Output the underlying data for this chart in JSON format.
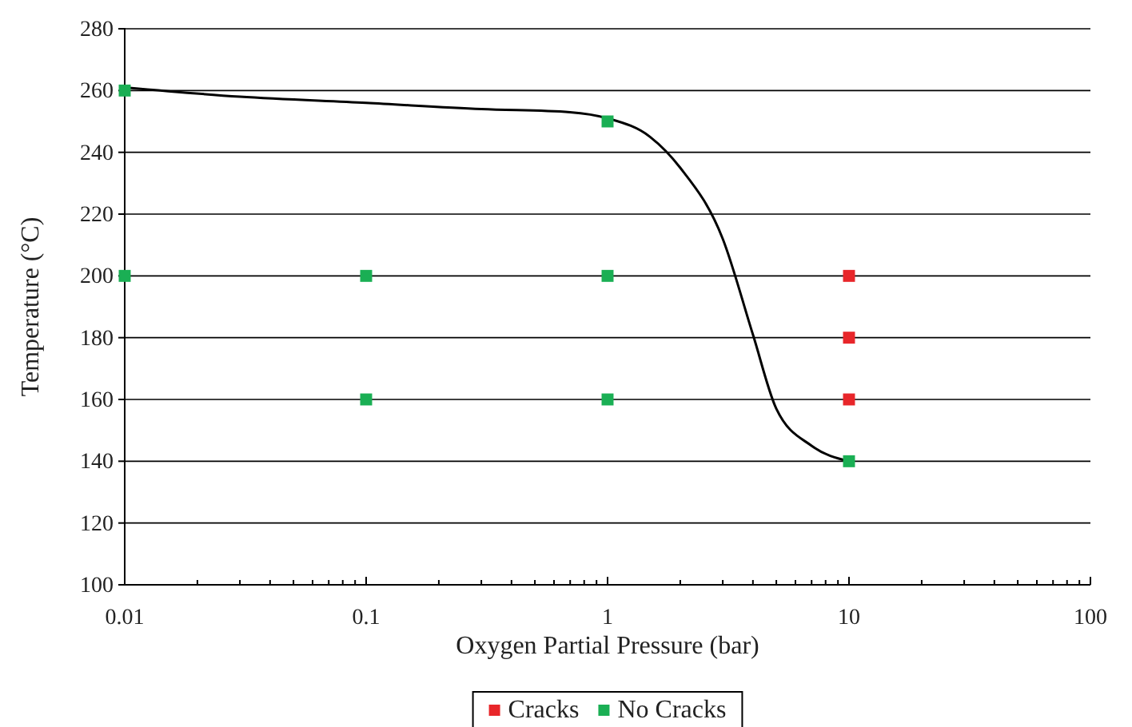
{
  "chart_data": {
    "type": "scatter",
    "xlabel": "Oxygen Partial Pressure (bar)",
    "ylabel": "Temperature (°C)",
    "log": "x",
    "xlim": [
      0.01,
      100
    ],
    "ylim": [
      100,
      280
    ],
    "xticks": [
      0.01,
      {
        "value": 0.02,
        "label": null
      },
      {
        "value": 0.03,
        "label": null
      },
      {
        "value": 0.04,
        "label": null
      },
      {
        "value": 0.05,
        "label": null
      },
      {
        "value": 0.06,
        "label": null
      },
      {
        "value": 0.07,
        "label": null
      },
      {
        "value": 0.08,
        "label": null
      },
      {
        "value": 0.09,
        "label": null
      },
      0.1,
      {
        "value": 0.2,
        "label": null
      },
      {
        "value": 0.3,
        "label": null
      },
      {
        "value": 0.4,
        "label": null
      },
      {
        "value": 0.5,
        "label": null
      },
      {
        "value": 0.6,
        "label": null
      },
      {
        "value": 0.7,
        "label": null
      },
      {
        "value": 0.8,
        "label": null
      },
      {
        "value": 0.9,
        "label": null
      },
      1,
      {
        "value": 2,
        "label": null
      },
      {
        "value": 3,
        "label": null
      },
      {
        "value": 4,
        "label": null
      },
      {
        "value": 5,
        "label": null
      },
      {
        "value": 6,
        "label": null
      },
      {
        "value": 7,
        "label": null
      },
      {
        "value": 8,
        "label": null
      },
      {
        "value": 9,
        "label": null
      },
      10,
      {
        "value": 20,
        "label": null
      },
      {
        "value": 30,
        "label": null
      },
      {
        "value": 40,
        "label": null
      },
      {
        "value": 50,
        "label": null
      },
      {
        "value": 60,
        "label": null
      },
      {
        "value": 70,
        "label": null
      },
      {
        "value": 80,
        "label": null
      },
      {
        "value": 90,
        "label": null
      },
      100
    ],
    "yticks": [
      100,
      120,
      140,
      160,
      180,
      200,
      220,
      240,
      260,
      280
    ],
    "grid": "y",
    "legend": "bottom",
    "marker": "square",
    "series": [
      {
        "type": "line",
        "color": "#000000",
        "marker": "none",
        "x": [
          0.01,
          0.03,
          0.1,
          0.3,
          0.7,
          1,
          1.5,
          2,
          3,
          4,
          5,
          7,
          10
        ],
        "values": [
          261,
          258,
          256,
          254,
          253,
          251,
          245,
          235,
          212,
          181,
          157,
          145,
          140
        ]
      },
      {
        "name": "Cracks",
        "color": "#e8262a",
        "x": [
          10,
          10,
          10
        ],
        "values": [
          200,
          180,
          160
        ]
      },
      {
        "name": "No Cracks",
        "color": "#1aaf54",
        "x": [
          0.01,
          0.01,
          0.1,
          0.1,
          1,
          1,
          1,
          10
        ],
        "values": [
          260,
          200,
          200,
          160,
          250,
          200,
          160,
          140
        ]
      }
    ]
  }
}
